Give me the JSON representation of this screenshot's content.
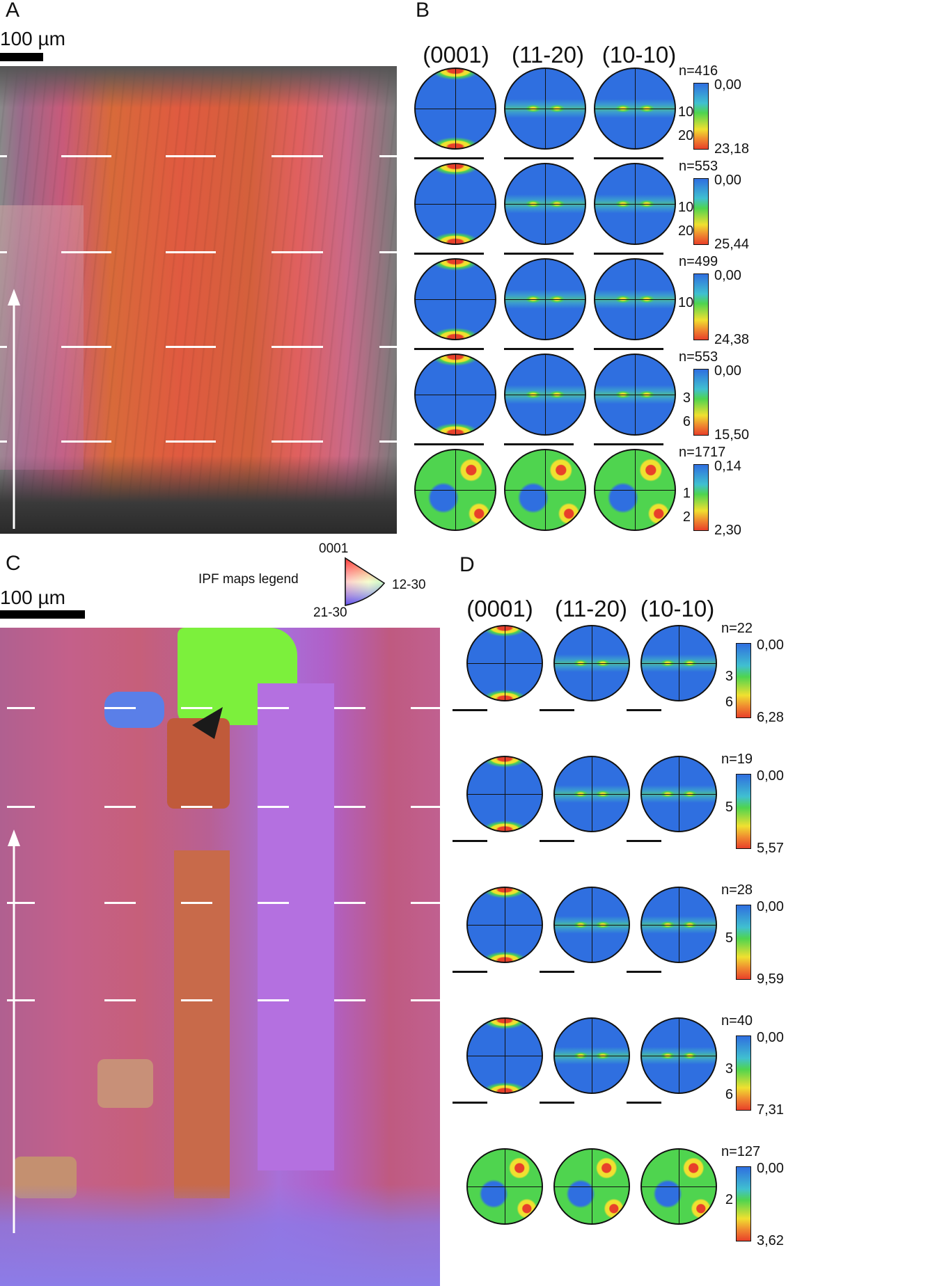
{
  "panel_labels": {
    "a": "A",
    "b": "B",
    "c": "C",
    "d": "D"
  },
  "scale_bars": {
    "a": "100 µm",
    "c": "100 µm"
  },
  "ipf_legend": {
    "title": "IPF maps legend",
    "top": "0001",
    "right": "12-30",
    "bottom": "21-30"
  },
  "pole_figure_headers": {
    "c_axis": "(0001)",
    "a_axis": "(11-20)",
    "m_axis": "(10-10)"
  },
  "panel_b": {
    "rows": [
      {
        "n": "n=416",
        "cmin": "0,00",
        "cmax": "23,18",
        "ticks": [
          "10",
          "20"
        ]
      },
      {
        "n": "n=553",
        "cmin": "0,00",
        "cmax": "25,44",
        "ticks": [
          "10",
          "20"
        ]
      },
      {
        "n": "n=499",
        "cmin": "0,00",
        "cmax": "24,38",
        "ticks": [
          "10"
        ]
      },
      {
        "n": "n=553",
        "cmin": "0,00",
        "cmax": "15,50",
        "ticks": [
          "3",
          "6"
        ]
      },
      {
        "n": "n=1717",
        "cmin": "0,14",
        "cmax": "2,30",
        "ticks": [
          "1",
          "2"
        ]
      }
    ]
  },
  "panel_d": {
    "rows": [
      {
        "n": "n=22",
        "cmin": "0,00",
        "cmax": "6,28",
        "ticks": [
          "3",
          "6"
        ]
      },
      {
        "n": "n=19",
        "cmin": "0,00",
        "cmax": "5,57",
        "ticks": [
          "5"
        ]
      },
      {
        "n": "n=28",
        "cmin": "0,00",
        "cmax": "9,59",
        "ticks": [
          "5"
        ]
      },
      {
        "n": "n=40",
        "cmin": "0,00",
        "cmax": "7,31",
        "ticks": [
          "3",
          "6"
        ]
      },
      {
        "n": "n=127",
        "cmin": "0,00",
        "cmax": "3,62",
        "ticks": [
          "2"
        ]
      }
    ]
  },
  "colors": {
    "low": "#2f6fe0",
    "mid": "#4fd44f",
    "high": "#f0e030",
    "max": "#e8402a"
  }
}
